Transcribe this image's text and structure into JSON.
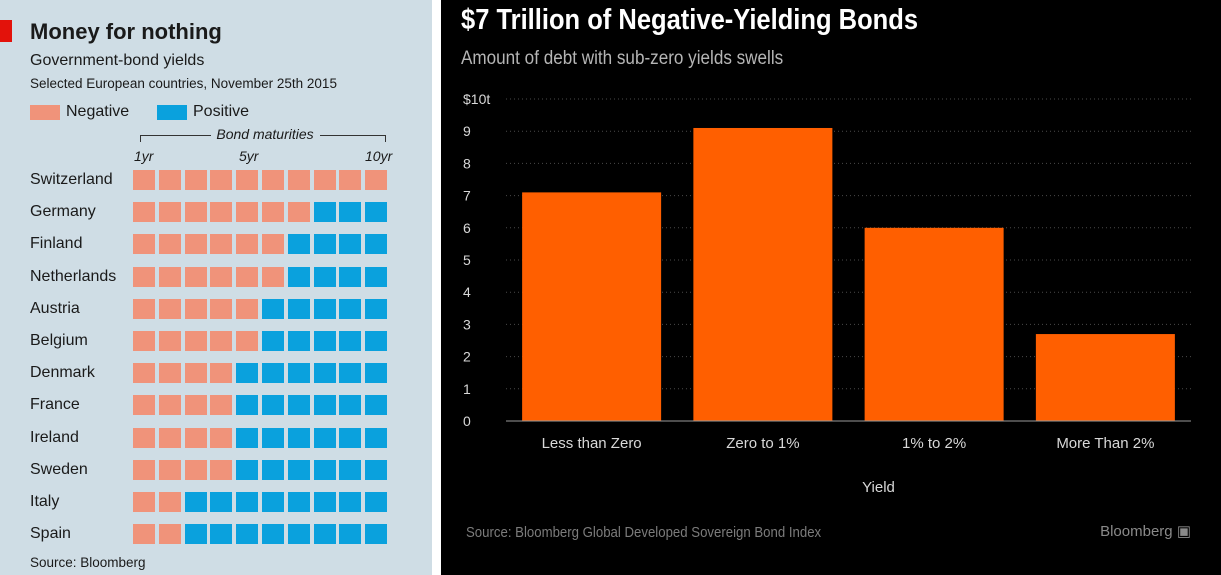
{
  "left": {
    "title": "Money for nothing",
    "subtitle": "Government-bond yields",
    "subsubtitle": "Selected European countries, November 25th 2015",
    "legend": [
      {
        "label": "Negative",
        "color": "#f0937a"
      },
      {
        "label": "Positive",
        "color": "#0aa1dd"
      }
    ],
    "maturities_label": "Bond maturities",
    "source": "Source: Bloomberg"
  },
  "right": {
    "title": "$7 Trillion of Negative-Yielding Bonds",
    "subtitle": "Amount of debt with sub-zero yields swells",
    "source": "Source: Bloomberg Global Developed Sovereign Bond Index",
    "brand": "Bloomberg",
    "bar_color": "#ff5f00"
  },
  "chart_data": [
    {
      "type": "heatmap",
      "title": "Money for nothing",
      "subtitle": "Government-bond yields",
      "note": "Selected European countries, November 25th 2015",
      "xlabel": "Bond maturities",
      "x_ticks": [
        "1yr",
        "5yr",
        "10yr"
      ],
      "maturities_years": [
        1,
        2,
        3,
        4,
        5,
        6,
        7,
        8,
        9,
        10
      ],
      "legend": [
        "Negative",
        "Positive"
      ],
      "rows": [
        {
          "country": "Switzerland",
          "negative_through_year": 10
        },
        {
          "country": "Germany",
          "negative_through_year": 7
        },
        {
          "country": "Finland",
          "negative_through_year": 6
        },
        {
          "country": "Netherlands",
          "negative_through_year": 6
        },
        {
          "country": "Austria",
          "negative_through_year": 5
        },
        {
          "country": "Belgium",
          "negative_through_year": 5
        },
        {
          "country": "Denmark",
          "negative_through_year": 4
        },
        {
          "country": "France",
          "negative_through_year": 4
        },
        {
          "country": "Ireland",
          "negative_through_year": 4
        },
        {
          "country": "Sweden",
          "negative_through_year": 4
        },
        {
          "country": "Italy",
          "negative_through_year": 2
        },
        {
          "country": "Spain",
          "negative_through_year": 2
        }
      ],
      "source": "Source: Bloomberg"
    },
    {
      "type": "bar",
      "title": "$7 Trillion of Negative-Yielding Bonds",
      "subtitle": "Amount of debt with sub-zero yields swells",
      "categories": [
        "Less than Zero",
        "Zero to 1%",
        "1% to 2%",
        "More Than 2%"
      ],
      "values": [
        7.1,
        9.1,
        6.0,
        2.7
      ],
      "xlabel": "Yield",
      "ylabel": "",
      "ylim": [
        0,
        10
      ],
      "yticks": [
        0,
        1,
        2,
        3,
        4,
        5,
        6,
        7,
        8,
        9,
        10
      ],
      "ytick_labels": [
        "0",
        "1",
        "2",
        "3",
        "4",
        "5",
        "6",
        "7",
        "8",
        "9",
        "$10t"
      ],
      "grid": true,
      "source": "Source: Bloomberg Global Developed Sovereign Bond Index"
    }
  ]
}
